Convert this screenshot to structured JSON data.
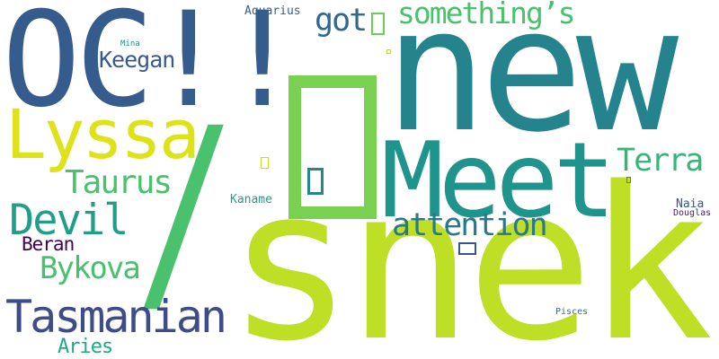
{
  "words": {
    "snek": {
      "text": "snek",
      "color": "#bedf26"
    },
    "new": {
      "text": "new",
      "color": "#25838e"
    },
    "oc": {
      "text": "OC!!",
      "color": "#365c8d"
    },
    "meet": {
      "text": "Meet",
      "color": "#1f948c"
    },
    "lyssa": {
      "text": "Lyssa",
      "color": "#dde318"
    },
    "slash": {
      "text": "/",
      "color": "#4ac16d"
    },
    "tasmanian": {
      "text": "Tasmanian",
      "color": "#3e4c8a"
    },
    "devil": {
      "text": "Devil",
      "color": "#1f9f88"
    },
    "bykova": {
      "text": "Bykova",
      "color": "#48c16e"
    },
    "taurus": {
      "text": "Taurus",
      "color": "#4ac16d"
    },
    "attention": {
      "text": "attention",
      "color": "#2a788e"
    },
    "terra": {
      "text": "Terra",
      "color": "#35b779"
    },
    "somethings": {
      "text": "something’s",
      "color": "#4ac16d"
    },
    "got": {
      "text": "got",
      "color": "#31688e"
    },
    "keegan": {
      "text": "Keegan",
      "color": "#38598c"
    },
    "beran": {
      "text": "Beran",
      "color": "#440154"
    },
    "aries": {
      "text": "Aries",
      "color": "#22a884"
    },
    "aquarius": {
      "text": "Aquarius",
      "color": "#33628d"
    },
    "kaname": {
      "text": "Kaname",
      "color": "#1f9e89"
    },
    "naia": {
      "text": "Naia",
      "color": "#3b528b"
    },
    "douglas": {
      "text": "Douglas",
      "color": "#482173"
    },
    "mina": {
      "text": "Mina",
      "color": "#21918c"
    },
    "pisces": {
      "text": "Pisces",
      "color": "#2c728e"
    }
  },
  "glyphs": {
    "big_box": {
      "color": "#7ad151"
    },
    "box_got": {
      "color": "#6ccd5a"
    },
    "box_small_mid": {
      "color": "#23888e"
    },
    "box_attention": {
      "color": "#39568c"
    },
    "box_yellow_small": {
      "color": "#c8e020"
    },
    "box_tiny_left": {
      "color": "#c2df23"
    },
    "box_tiny_right": {
      "color": "#1f968b"
    }
  }
}
